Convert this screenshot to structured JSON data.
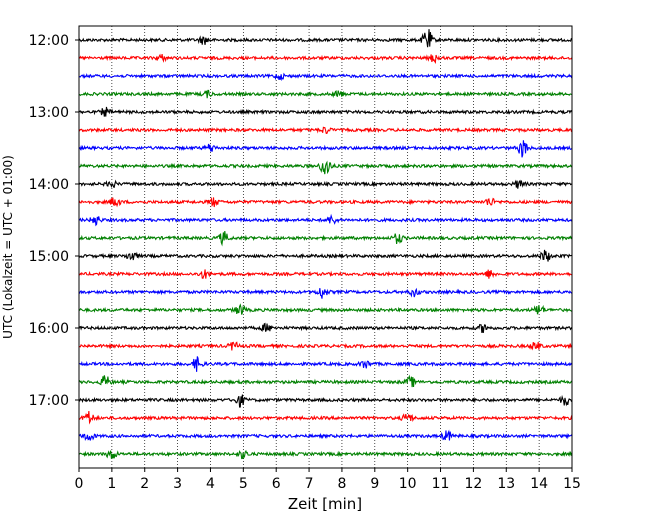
{
  "chart_data": {
    "type": "line",
    "xlabel": "Zeit  [min]",
    "ylabel": "UTC (Lokalzeit = UTC + 01:00)",
    "xlim": [
      0,
      15
    ],
    "x_ticks": [
      "0",
      "1",
      "2",
      "3",
      "4",
      "5",
      "6",
      "7",
      "8",
      "9",
      "10",
      "11",
      "12",
      "13",
      "14",
      "15"
    ],
    "y_tick_labels": [
      "12:00",
      "13:00",
      "14:00",
      "15:00",
      "16:00",
      "17:00"
    ],
    "grid": "vertical dotted at each minute",
    "trace_colors": [
      "#000000",
      "#ff0000",
      "#0000ff",
      "#008000"
    ],
    "traces": [
      {
        "start": "12:00",
        "color": "#000000",
        "events": [
          {
            "min": 10.6,
            "amp": 11
          },
          {
            "min": 3.8,
            "amp": 4
          }
        ]
      },
      {
        "start": "12:15",
        "color": "#ff0000",
        "events": [
          {
            "min": 10.8,
            "amp": 4
          },
          {
            "min": 2.5,
            "amp": 3
          }
        ]
      },
      {
        "start": "12:30",
        "color": "#0000ff",
        "events": [
          {
            "min": 6.1,
            "amp": 3
          }
        ]
      },
      {
        "start": "12:45",
        "color": "#008000",
        "events": [
          {
            "min": 3.9,
            "amp": 3
          },
          {
            "min": 7.9,
            "amp": 3
          }
        ]
      },
      {
        "start": "13:00",
        "color": "#000000",
        "events": [
          {
            "min": 0.8,
            "amp": 4
          }
        ]
      },
      {
        "start": "13:15",
        "color": "#ff0000",
        "events": [
          {
            "min": 7.5,
            "amp": 3
          }
        ]
      },
      {
        "start": "13:30",
        "color": "#0000ff",
        "events": [
          {
            "min": 13.5,
            "amp": 9
          },
          {
            "min": 4.0,
            "amp": 4
          }
        ]
      },
      {
        "start": "13:45",
        "color": "#008000",
        "events": [
          {
            "min": 7.5,
            "amp": 11
          }
        ]
      },
      {
        "start": "14:00",
        "color": "#000000",
        "events": [
          {
            "min": 13.4,
            "amp": 4
          },
          {
            "min": 1.0,
            "amp": 3
          }
        ]
      },
      {
        "start": "14:15",
        "color": "#ff0000",
        "events": [
          {
            "min": 1.1,
            "amp": 5
          },
          {
            "min": 4.1,
            "amp": 4
          },
          {
            "min": 12.5,
            "amp": 4
          }
        ]
      },
      {
        "start": "14:30",
        "color": "#0000ff",
        "events": [
          {
            "min": 0.5,
            "amp": 5
          },
          {
            "min": 7.7,
            "amp": 4
          }
        ]
      },
      {
        "start": "14:45",
        "color": "#008000",
        "events": [
          {
            "min": 4.4,
            "amp": 6
          },
          {
            "min": 9.7,
            "amp": 5
          }
        ]
      },
      {
        "start": "15:00",
        "color": "#000000",
        "events": [
          {
            "min": 14.2,
            "amp": 6
          },
          {
            "min": 1.6,
            "amp": 5
          }
        ]
      },
      {
        "start": "15:15",
        "color": "#ff0000",
        "events": [
          {
            "min": 3.8,
            "amp": 4
          },
          {
            "min": 12.5,
            "amp": 4
          }
        ]
      },
      {
        "start": "15:30",
        "color": "#0000ff",
        "events": [
          {
            "min": 7.4,
            "amp": 6
          },
          {
            "min": 10.2,
            "amp": 4
          }
        ]
      },
      {
        "start": "15:45",
        "color": "#008000",
        "events": [
          {
            "min": 4.9,
            "amp": 5
          },
          {
            "min": 14.0,
            "amp": 5
          }
        ]
      },
      {
        "start": "16:00",
        "color": "#000000",
        "events": [
          {
            "min": 5.7,
            "amp": 4
          },
          {
            "min": 12.3,
            "amp": 4
          }
        ]
      },
      {
        "start": "16:15",
        "color": "#ff0000",
        "events": [
          {
            "min": 4.7,
            "amp": 4
          },
          {
            "min": 13.9,
            "amp": 4
          }
        ]
      },
      {
        "start": "16:30",
        "color": "#0000ff",
        "events": [
          {
            "min": 3.6,
            "amp": 7
          },
          {
            "min": 8.7,
            "amp": 4
          }
        ]
      },
      {
        "start": "16:45",
        "color": "#008000",
        "events": [
          {
            "min": 0.8,
            "amp": 6
          },
          {
            "min": 10.1,
            "amp": 5
          }
        ]
      },
      {
        "start": "17:00",
        "color": "#000000",
        "events": [
          {
            "min": 4.9,
            "amp": 6
          },
          {
            "min": 14.8,
            "amp": 5
          }
        ]
      },
      {
        "start": "17:15",
        "color": "#ff0000",
        "events": [
          {
            "min": 0.3,
            "amp": 6
          },
          {
            "min": 10.0,
            "amp": 5
          }
        ]
      },
      {
        "start": "17:30",
        "color": "#0000ff",
        "events": [
          {
            "min": 0.3,
            "amp": 5
          },
          {
            "min": 11.2,
            "amp": 5
          }
        ]
      },
      {
        "start": "17:45",
        "color": "#008000",
        "events": [
          {
            "min": 1.0,
            "amp": 5
          },
          {
            "min": 5.0,
            "amp": 4
          }
        ]
      }
    ]
  }
}
